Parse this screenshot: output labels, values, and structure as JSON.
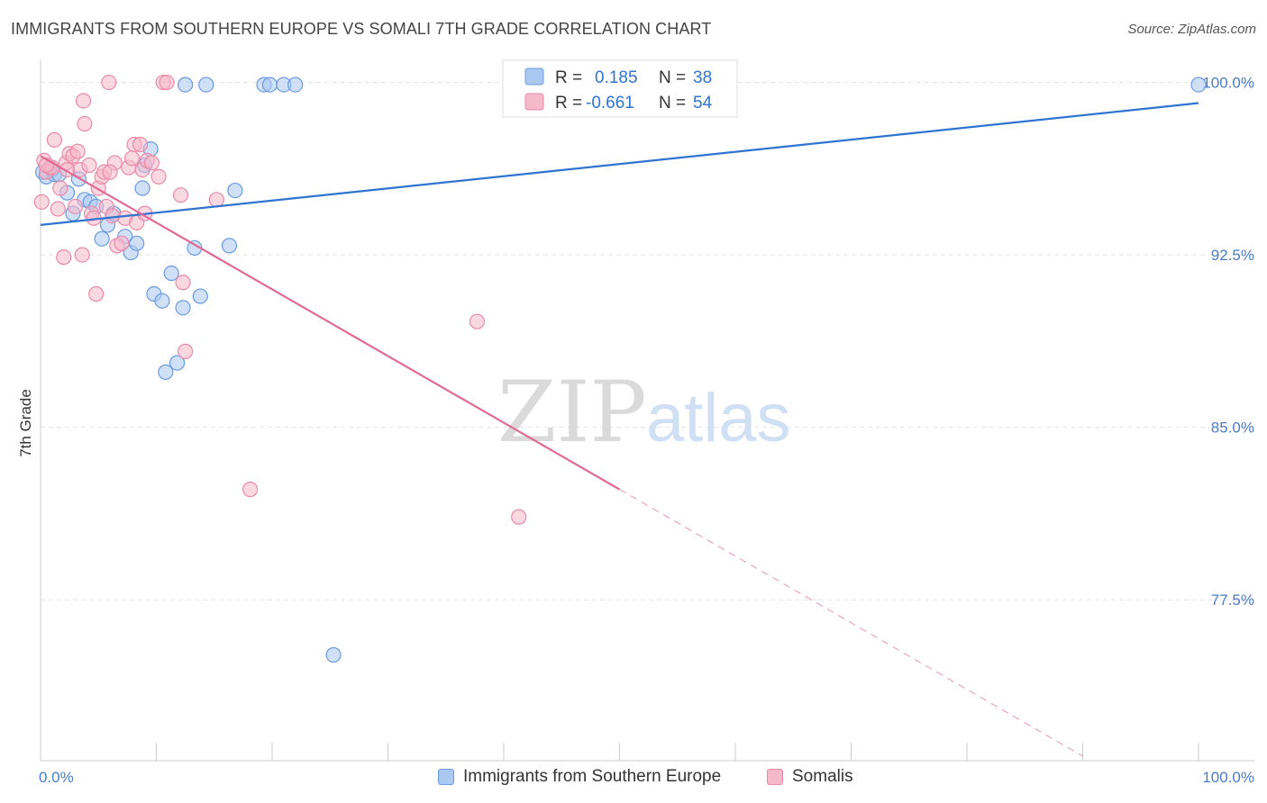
{
  "header": {
    "title": "IMMIGRANTS FROM SOUTHERN EUROPE VS SOMALI 7TH GRADE CORRELATION CHART",
    "source": "Source: ZipAtlas.com"
  },
  "watermark": {
    "zip": "ZIP",
    "atlas": "atlas"
  },
  "colors": {
    "blue_fill": "#aac8f0",
    "blue_stroke": "#6a9be0",
    "blue_line": "#2f74d0",
    "pink_fill": "#f6b8cb",
    "pink_stroke": "#ea8aa8",
    "pink_line": "#e06a94",
    "axis_text": "#4a7cc7",
    "grid": "#e4e4e4"
  },
  "stats_legend": {
    "rows": [
      {
        "r_label": "R =",
        "r_value": "0.185",
        "n_label": "N =",
        "n_value": "38"
      },
      {
        "r_label": "R =",
        "r_value": "-0.661",
        "n_label": "N =",
        "n_value": "54"
      }
    ]
  },
  "chart_data": {
    "type": "scatter",
    "title": "IMMIGRANTS FROM SOUTHERN EUROPE VS SOMALI 7TH GRADE CORRELATION CHART",
    "xlabel": "",
    "ylabel": "7th Grade",
    "xlim": [
      0,
      100
    ],
    "ylim": [
      70.5,
      101.0
    ],
    "x_ticks": [
      0,
      10,
      20,
      30,
      40,
      50,
      60,
      70,
      80,
      90,
      100
    ],
    "x_tick_labels": {
      "left": "0.0%",
      "right": "100.0%"
    },
    "y_ticks": [
      100.0,
      92.5,
      85.0,
      77.5
    ],
    "y_tick_labels": [
      "100.0%",
      "92.5%",
      "85.0%",
      "77.5%"
    ],
    "grid": "horizontal dashed",
    "legend_position": "bottom",
    "series": [
      {
        "name": "Immigrants from Southern Europe",
        "color": "blue",
        "trend": {
          "x0": 0,
          "y0": 93.8,
          "x1": 100,
          "y1": 99.1,
          "dashed_from": null
        },
        "points": [
          [
            0.2,
            96.1
          ],
          [
            0.5,
            95.9
          ],
          [
            1.0,
            96.2
          ],
          [
            1.2,
            96.0
          ],
          [
            1.6,
            96.0
          ],
          [
            2.3,
            95.2
          ],
          [
            2.8,
            94.3
          ],
          [
            3.3,
            95.8
          ],
          [
            3.8,
            94.9
          ],
          [
            4.3,
            94.8
          ],
          [
            4.8,
            94.6
          ],
          [
            5.3,
            93.2
          ],
          [
            5.8,
            93.8
          ],
          [
            6.3,
            94.3
          ],
          [
            7.3,
            93.3
          ],
          [
            7.8,
            92.6
          ],
          [
            8.3,
            93.0
          ],
          [
            8.8,
            95.4
          ],
          [
            9.0,
            96.4
          ],
          [
            9.5,
            97.1
          ],
          [
            9.8,
            90.8
          ],
          [
            10.5,
            90.5
          ],
          [
            10.8,
            87.4
          ],
          [
            11.3,
            91.7
          ],
          [
            11.8,
            87.8
          ],
          [
            12.3,
            90.2
          ],
          [
            13.3,
            92.8
          ],
          [
            13.8,
            90.7
          ],
          [
            12.5,
            99.9
          ],
          [
            14.3,
            99.9
          ],
          [
            19.3,
            99.9
          ],
          [
            19.8,
            99.9
          ],
          [
            21.0,
            99.9
          ],
          [
            22.0,
            99.9
          ],
          [
            16.3,
            92.9
          ],
          [
            16.8,
            95.3
          ],
          [
            25.3,
            75.1
          ],
          [
            100.0,
            99.9
          ]
        ]
      },
      {
        "name": "Somalis",
        "color": "pink",
        "trend": {
          "x0": 0,
          "y0": 96.8,
          "x1": 90,
          "y1": 70.7,
          "dashed_from": 50
        },
        "points": [
          [
            0.1,
            94.8
          ],
          [
            0.3,
            96.6
          ],
          [
            0.5,
            96.1
          ],
          [
            0.8,
            96.3
          ],
          [
            1.0,
            96.3
          ],
          [
            1.2,
            97.5
          ],
          [
            1.5,
            94.5
          ],
          [
            1.7,
            95.4
          ],
          [
            2.0,
            92.4
          ],
          [
            2.2,
            96.5
          ],
          [
            2.5,
            96.9
          ],
          [
            2.8,
            96.8
          ],
          [
            3.0,
            94.6
          ],
          [
            3.2,
            97.0
          ],
          [
            3.4,
            96.2
          ],
          [
            3.6,
            92.5
          ],
          [
            3.8,
            98.2
          ],
          [
            3.7,
            99.2
          ],
          [
            4.2,
            96.4
          ],
          [
            4.4,
            94.3
          ],
          [
            4.6,
            94.1
          ],
          [
            4.8,
            90.8
          ],
          [
            5.0,
            95.4
          ],
          [
            5.3,
            95.9
          ],
          [
            5.5,
            96.1
          ],
          [
            5.7,
            94.6
          ],
          [
            5.9,
            100.0
          ],
          [
            6.2,
            94.2
          ],
          [
            6.4,
            96.5
          ],
          [
            6.6,
            92.9
          ],
          [
            7.0,
            93.0
          ],
          [
            7.3,
            94.1
          ],
          [
            7.6,
            96.3
          ],
          [
            7.9,
            96.7
          ],
          [
            8.1,
            97.3
          ],
          [
            8.3,
            93.9
          ],
          [
            8.6,
            97.3
          ],
          [
            8.8,
            96.2
          ],
          [
            9.0,
            94.3
          ],
          [
            9.2,
            96.6
          ],
          [
            9.6,
            96.5
          ],
          [
            10.2,
            95.9
          ],
          [
            10.6,
            100.0
          ],
          [
            10.9,
            100.0
          ],
          [
            12.1,
            95.1
          ],
          [
            12.3,
            91.3
          ],
          [
            12.5,
            88.3
          ],
          [
            15.2,
            94.9
          ],
          [
            18.1,
            82.3
          ],
          [
            37.7,
            89.6
          ],
          [
            41.3,
            81.1
          ],
          [
            0.5,
            96.4
          ],
          [
            2.3,
            96.2
          ],
          [
            6.0,
            96.1
          ]
        ]
      }
    ]
  },
  "bottom_legend": {
    "items": [
      {
        "label": "Immigrants from Southern Europe"
      },
      {
        "label": "Somalis"
      }
    ]
  }
}
